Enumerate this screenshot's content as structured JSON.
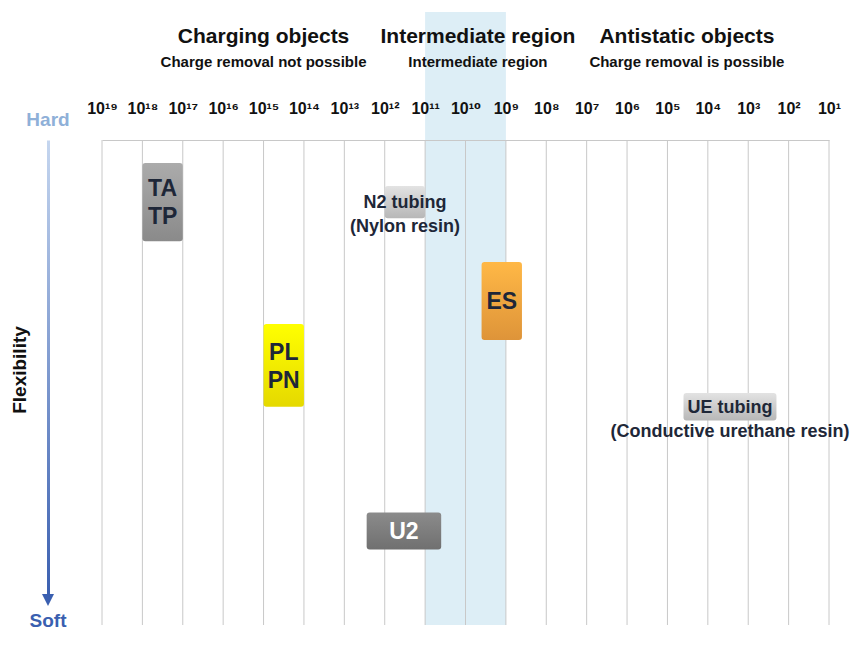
{
  "chart_data": {
    "type": "floating_bar",
    "orientation": "horizontal",
    "log": "x",
    "grid": true,
    "y_label": "Flexibility",
    "xlim": [
      1e+19,
      10
    ],
    "xticks": [
      {
        "value": 1e+19,
        "label": "10¹⁹"
      },
      {
        "value": 1e+18,
        "label": "10¹⁸"
      },
      {
        "value": 1e+17,
        "label": "10¹⁷"
      },
      {
        "value": 1e+16,
        "label": "10¹⁶"
      },
      {
        "value": 1000000000000000.0,
        "label": "10¹⁵"
      },
      {
        "value": 100000000000000.0,
        "label": "10¹⁴"
      },
      {
        "value": 10000000000000.0,
        "label": "10¹³"
      },
      {
        "value": 1000000000000.0,
        "label": "10¹²"
      },
      {
        "value": 100000000000.0,
        "label": "10¹¹"
      },
      {
        "value": 10000000000.0,
        "label": "10¹⁰"
      },
      {
        "value": 1000000000.0,
        "label": "10⁹"
      },
      {
        "value": 100000000.0,
        "label": "10⁸"
      },
      {
        "value": 10000000.0,
        "label": "10⁷"
      },
      {
        "value": 1000000.0,
        "label": "10⁶"
      },
      {
        "value": 100000.0,
        "label": "10⁵"
      },
      {
        "value": 10000.0,
        "label": "10⁴"
      },
      {
        "value": 1000.0,
        "label": "10³"
      },
      {
        "value": 100.0,
        "label": "10²"
      },
      {
        "value": 10,
        "label": "10¹"
      }
    ],
    "ylim": [
      100,
      0
    ],
    "yticks": [
      {
        "value": 0,
        "label": "Hard"
      },
      {
        "value": 100,
        "label": "Soft"
      }
    ],
    "regions": [
      {
        "title": "Charging objects",
        "subtitle": "Charge removal not possible",
        "range": [
          1e+19,
          100000000000.0
        ]
      },
      {
        "title": "Intermediate region",
        "subtitle": "Intermediate region",
        "range": [
          100000000000.0,
          1000000000.0
        ],
        "color": "#ddeef6"
      },
      {
        "title": "Antistatic objects",
        "subtitle": "Charge removal is possible",
        "range": [
          1000000000.0,
          10
        ]
      }
    ],
    "items": [
      {
        "label": [
          "TA",
          "TP"
        ],
        "x": [
          1e+18,
          1e+17
        ],
        "y": [
          5,
          22
        ],
        "color": "#9a9a9a"
      },
      {
        "label": [
          "N2 tubing",
          "(Nylon resin)"
        ],
        "x": [
          1000000000000.0,
          100000000000.0
        ],
        "y": [
          10,
          17
        ],
        "color": "#cccccc"
      },
      {
        "label": [
          "ES"
        ],
        "x": [
          4000000000.0,
          400000000.0
        ],
        "y": [
          26.5,
          43.5
        ],
        "color": "#f7a53f"
      },
      {
        "label": [
          "PL",
          "PN"
        ],
        "x": [
          1000000000000000.0,
          100000000000000.0
        ],
        "y": [
          40,
          58
        ],
        "color": "#fff200"
      },
      {
        "label": [
          "UE tubing",
          "(Conductive urethane resin)"
        ],
        "x": [
          40000.0,
          200.0
        ],
        "y": [
          55,
          61
        ],
        "color": "#cccccc"
      },
      {
        "label": [
          "U2"
        ],
        "x": [
          2800000000000.0,
          40000000000.0
        ],
        "y": [
          81,
          89
        ],
        "color": "#7d7d7d"
      }
    ]
  }
}
